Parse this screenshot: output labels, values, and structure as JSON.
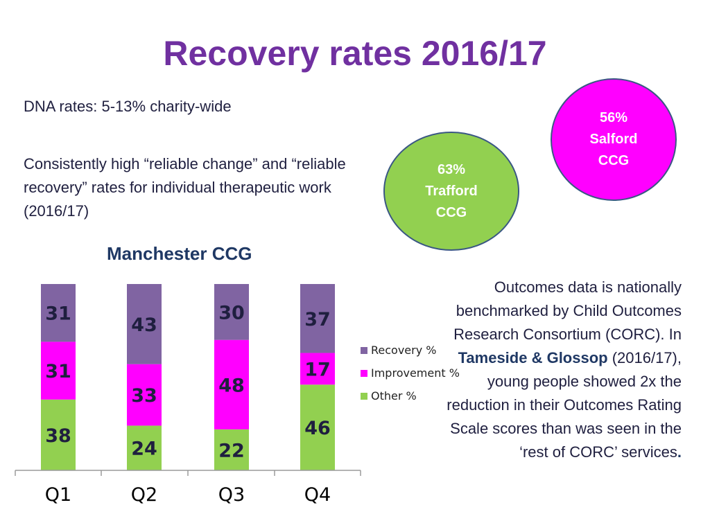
{
  "title": "Recovery rates 2016/17",
  "dna_text": "DNA rates: 5-13% charity-wide",
  "consistently_text": "Consistently high “reliable change” and “reliable recovery” rates for individual therapeutic work (2016/17)",
  "bubbles": {
    "salford": {
      "pct": "56%",
      "line1": "Salford",
      "line2": "CCG",
      "color": "#ff00ff"
    },
    "trafford": {
      "pct": "63%",
      "line1": "Trafford",
      "line2": "CCG",
      "color": "#92d050"
    }
  },
  "corc": {
    "before": "Outcomes data is nationally benchmarked by Child Outcomes Research Consortium (CORC). In ",
    "bold": "Tameside & Glossop",
    "after": " (2016/17), young people showed 2x the reduction in their Outcomes Rating Scale scores than was seen in the ‘rest of CORC’ services",
    "end": "."
  },
  "chart_data": {
    "type": "bar",
    "stacked": true,
    "title": "Manchester CCG",
    "categories": [
      "Q1",
      "Q2",
      "Q3",
      "Q4"
    ],
    "series": [
      {
        "name": "Other %",
        "values": [
          38,
          24,
          22,
          46
        ],
        "color": "#92d050"
      },
      {
        "name": "Improvement %",
        "values": [
          31,
          33,
          48,
          17
        ],
        "color": "#ff00ff"
      },
      {
        "name": "Recovery %",
        "values": [
          31,
          43,
          30,
          37
        ],
        "color": "#8064a2"
      }
    ],
    "legend_order": [
      "Recovery %",
      "Improvement %",
      "Other %"
    ],
    "ylim": [
      0,
      100
    ],
    "xlabel": "",
    "ylabel": "",
    "grid": false,
    "legend_position": "right"
  }
}
